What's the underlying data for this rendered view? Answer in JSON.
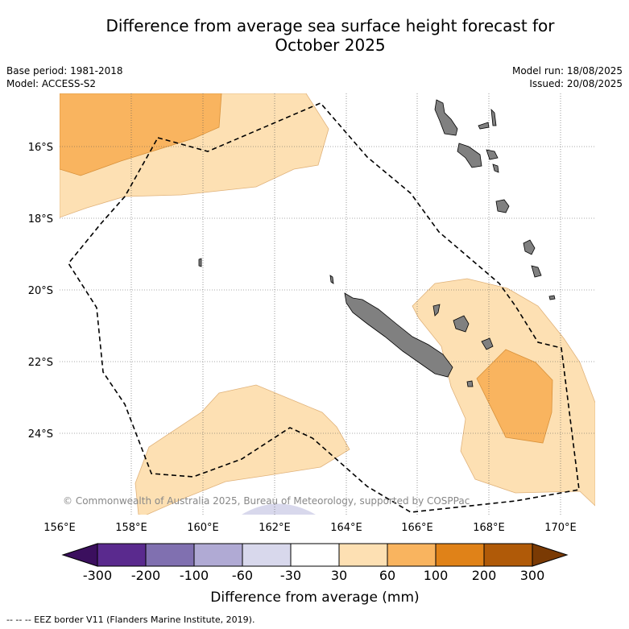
{
  "title_line1": "Difference from average sea surface height forecast for",
  "title_line2": "October 2025",
  "base_period": "Base period: 1981-2018",
  "model": "Model: ACCESS-S2",
  "model_run": "Model run: 18/08/2025",
  "issued": "Issued: 20/08/2025",
  "copyright": "© Commonwealth of Australia 2025, Bureau of Meteorology, supported by COSPPac",
  "lon_labels": [
    "156°E",
    "158°E",
    "160°E",
    "162°E",
    "164°E",
    "166°E",
    "168°E",
    "170°E"
  ],
  "lat_labels": [
    "16°S",
    "18°S",
    "20°S",
    "22°S",
    "24°S"
  ],
  "colorbar": {
    "ticks": [
      "-300",
      "-200",
      "-100",
      "-60",
      "-30",
      "30",
      "60",
      "100",
      "200",
      "300"
    ],
    "colors": [
      "#3b0f5e",
      "#5a2a8e",
      "#8070b0",
      "#b0aad4",
      "#d8d8ec",
      "#ffffff",
      "#fde0b3",
      "#f9b45f",
      "#e08218",
      "#b05a08",
      "#7a3a04"
    ],
    "label": "Difference from average (mm)"
  },
  "legend_note": "-- -- -- EEZ border V11 (Flanders Marine Institute, 2019).",
  "map_colors": {
    "light_orange": "#fde0b3",
    "mid_orange": "#f9b45f",
    "land": "#808080",
    "light_purple": "#d8d8ec"
  }
}
